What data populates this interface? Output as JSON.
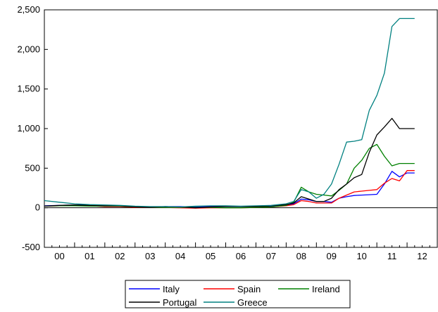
{
  "chart_data": {
    "type": "line",
    "title": "",
    "xlabel": "",
    "ylabel": "",
    "x_ticks": [
      "00",
      "01",
      "02",
      "03",
      "04",
      "05",
      "06",
      "07",
      "08",
      "09",
      "10",
      "11",
      "12"
    ],
    "y_ticks": [
      "-500",
      "0",
      "500",
      "1,000",
      "1,500",
      "2,000",
      "2,500"
    ],
    "ylim": [
      -500,
      2500
    ],
    "xlim": [
      2000,
      2013
    ],
    "grid": false,
    "legend_placement": "bottom",
    "x": [
      2000.0,
      2000.5,
      2001.0,
      2001.5,
      2002.0,
      2002.5,
      2003.0,
      2003.5,
      2004.0,
      2004.5,
      2005.0,
      2005.5,
      2006.0,
      2006.5,
      2007.0,
      2007.5,
      2008.0,
      2008.25,
      2008.5,
      2008.75,
      2009.0,
      2009.25,
      2009.5,
      2009.75,
      2010.0,
      2010.25,
      2010.5,
      2010.75,
      2011.0,
      2011.25,
      2011.5,
      2011.75,
      2012.0,
      2012.25
    ],
    "series": [
      {
        "name": "Italy",
        "color": "#0000ff",
        "values": [
          25,
          30,
          35,
          35,
          25,
          25,
          10,
          10,
          15,
          15,
          10,
          15,
          15,
          15,
          15,
          20,
          35,
          50,
          110,
          100,
          80,
          80,
          70,
          120,
          140,
          155,
          160,
          165,
          170,
          300,
          460,
          390,
          440,
          440
        ]
      },
      {
        "name": "Spain",
        "color": "#ff0000",
        "values": [
          20,
          25,
          25,
          25,
          15,
          15,
          5,
          5,
          5,
          0,
          -5,
          0,
          0,
          0,
          5,
          10,
          25,
          40,
          90,
          80,
          60,
          60,
          60,
          120,
          160,
          200,
          210,
          220,
          230,
          310,
          370,
          340,
          470,
          470
        ]
      },
      {
        "name": "Ireland",
        "color": "#008000",
        "values": [
          20,
          25,
          25,
          20,
          20,
          20,
          10,
          5,
          5,
          5,
          5,
          5,
          0,
          0,
          5,
          10,
          30,
          70,
          260,
          200,
          170,
          160,
          150,
          220,
          300,
          500,
          600,
          750,
          800,
          650,
          530,
          560,
          560,
          560
        ]
      },
      {
        "name": "Portugal",
        "color": "#000000",
        "values": [
          20,
          30,
          35,
          30,
          25,
          25,
          10,
          5,
          15,
          10,
          0,
          10,
          15,
          15,
          15,
          25,
          40,
          60,
          140,
          110,
          80,
          80,
          120,
          230,
          300,
          380,
          420,
          700,
          920,
          1020,
          1130,
          1000,
          1000,
          1000
        ]
      },
      {
        "name": "Greece",
        "color": "#008080",
        "values": [
          90,
          70,
          50,
          40,
          35,
          30,
          20,
          15,
          15,
          10,
          20,
          25,
          25,
          20,
          25,
          30,
          50,
          80,
          230,
          200,
          120,
          170,
          300,
          550,
          830,
          840,
          860,
          1230,
          1420,
          1700,
          2290,
          2390,
          2390,
          2390
        ]
      }
    ]
  }
}
